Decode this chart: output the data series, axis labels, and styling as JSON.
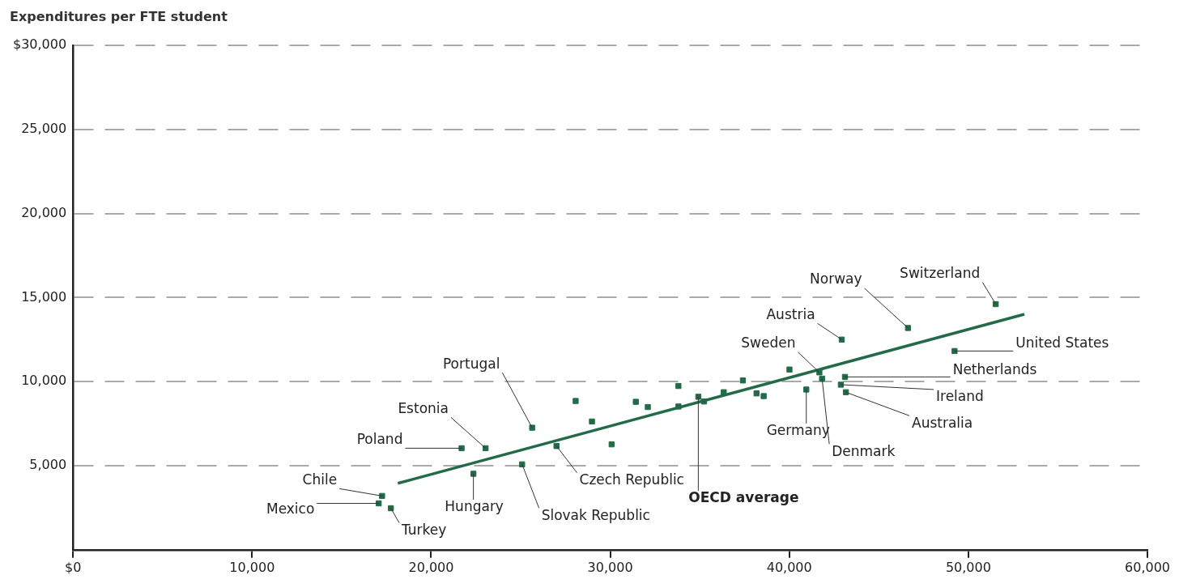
{
  "chart_data": {
    "type": "scatter",
    "ylabel": "Expenditures per FTE student",
    "xlim": [
      0,
      60000
    ],
    "ylim": [
      0,
      30000
    ],
    "xticks": [
      {
        "value": 0,
        "label": "$0"
      },
      {
        "value": 10000,
        "label": "10,000"
      },
      {
        "value": 20000,
        "label": "20,000"
      },
      {
        "value": 30000,
        "label": "30,000"
      },
      {
        "value": 40000,
        "label": "40,000"
      },
      {
        "value": 50000,
        "label": "50,000"
      },
      {
        "value": 60000,
        "label": "60,000"
      }
    ],
    "yticks": [
      {
        "value": 5000,
        "label": "5,000"
      },
      {
        "value": 10000,
        "label": "10,000"
      },
      {
        "value": 15000,
        "label": "15,000"
      },
      {
        "value": 20000,
        "label": "20,000"
      },
      {
        "value": 25000,
        "label": "25,000"
      },
      {
        "value": 30000,
        "label": "$30,000"
      }
    ],
    "grid": "y",
    "legend": false,
    "series": [
      {
        "marker": "square",
        "color": "#236b48",
        "x": [
          17260,
          17070,
          17750,
          21700,
          23040,
          25640,
          22360,
          25080,
          27000,
          34920,
          40950,
          41680,
          41830,
          42930,
          46630,
          51530,
          49230,
          43110,
          42880,
          43160,
          35240,
          28070,
          28980,
          30080,
          31430,
          32100,
          33810,
          33810,
          36340,
          37410,
          38170,
          38570,
          40010
        ],
        "values": [
          3200,
          2760,
          2470,
          6040,
          6040,
          7260,
          4520,
          5080,
          6170,
          9100,
          9530,
          10550,
          10180,
          12500,
          13190,
          14610,
          11820,
          10280,
          9820,
          9370,
          8820,
          8850,
          7630,
          6270,
          8800,
          8490,
          9740,
          8520,
          9370,
          10070,
          9300,
          9140,
          10720
        ]
      },
      {
        "type": "line",
        "color": "#236b48",
        "x": [
          18140,
          53130
        ],
        "values": [
          3950,
          14010
        ]
      }
    ],
    "annotations": [
      {
        "text": "Chile",
        "x": 17260,
        "y": 3200
      },
      {
        "text": "Mexico",
        "x": 17070,
        "y": 2760
      },
      {
        "text": "Turkey",
        "x": 17750,
        "y": 2470
      },
      {
        "text": "Poland",
        "x": 21700,
        "y": 6040
      },
      {
        "text": "Estonia",
        "x": 23040,
        "y": 6040
      },
      {
        "text": "Portugal",
        "x": 25640,
        "y": 7260
      },
      {
        "text": "Hungary",
        "x": 22360,
        "y": 4520
      },
      {
        "text": "Slovak Republic",
        "x": 25080,
        "y": 5080
      },
      {
        "text": "Czech Republic",
        "x": 27000,
        "y": 6170
      },
      {
        "text": "OECD average",
        "x": 34920,
        "y": 9100
      },
      {
        "text": "Germany",
        "x": 40950,
        "y": 9530
      },
      {
        "text": "Sweden",
        "x": 41680,
        "y": 10550
      },
      {
        "text": "Denmark",
        "x": 41830,
        "y": 10180
      },
      {
        "text": "Austria",
        "x": 42930,
        "y": 12500
      },
      {
        "text": "Norway",
        "x": 46630,
        "y": 13190
      },
      {
        "text": "Switzerland",
        "x": 51530,
        "y": 14610
      },
      {
        "text": "United States",
        "x": 49230,
        "y": 11820
      },
      {
        "text": "Netherlands",
        "x": 43110,
        "y": 10280
      },
      {
        "text": "Ireland",
        "x": 42880,
        "y": 9820
      },
      {
        "text": "Australia",
        "x": 43160,
        "y": 9370
      }
    ]
  }
}
